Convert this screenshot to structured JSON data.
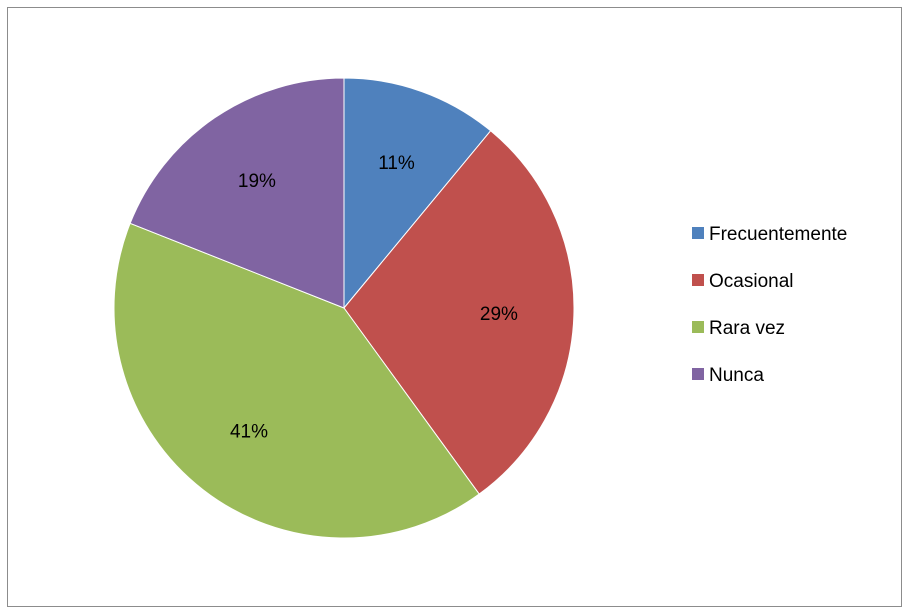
{
  "chart_data": {
    "type": "pie",
    "categories": [
      "Frecuentemente",
      "Ocasional",
      "Rara vez",
      "Nunca"
    ],
    "values": [
      11,
      29,
      41,
      19
    ],
    "labels": [
      "11%",
      "29%",
      "41%",
      "19%"
    ],
    "colors": [
      "#4f81bd",
      "#c0504d",
      "#9bbb59",
      "#8064a2"
    ],
    "start_angle_deg": 0,
    "direction": "clockwise",
    "legend_position": "right",
    "title": ""
  }
}
